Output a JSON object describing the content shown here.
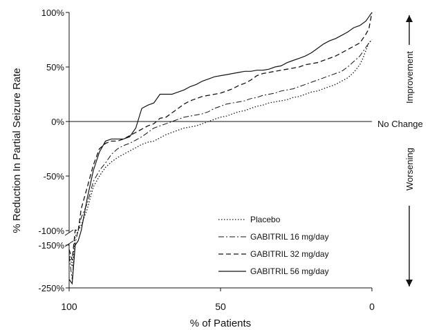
{
  "chart_data": {
    "type": "line",
    "title": "",
    "xlabel": "% of Patients",
    "ylabel": "% Reduction In Partial Seizure Rate",
    "xlim": [
      100,
      0
    ],
    "x_ticks": [
      "100",
      "50",
      "0"
    ],
    "y_ticks_upper": [
      "100%",
      "50%",
      "0%",
      "-50%",
      "-100%"
    ],
    "y_ticks_lower": [
      "-150%",
      "-250%"
    ],
    "y_axis_break": true,
    "reference_line": {
      "y": 0,
      "label": "No Change"
    },
    "side_labels": {
      "improvement": "Improvement",
      "worsening": "Worsening"
    },
    "legend_position": "bottom-right",
    "series": [
      {
        "name": "Placebo",
        "style": "dotted",
        "points": [
          [
            100,
            -170
          ],
          [
            99,
            -200
          ],
          [
            98,
            -130
          ],
          [
            97,
            -100
          ],
          [
            96,
            -95
          ],
          [
            94,
            -80
          ],
          [
            92,
            -60
          ],
          [
            90,
            -50
          ],
          [
            88,
            -42
          ],
          [
            86,
            -37
          ],
          [
            84,
            -33
          ],
          [
            82,
            -30
          ],
          [
            80,
            -27
          ],
          [
            78,
            -24
          ],
          [
            76,
            -21
          ],
          [
            74,
            -19
          ],
          [
            72,
            -18
          ],
          [
            70,
            -15
          ],
          [
            68,
            -12
          ],
          [
            66,
            -10
          ],
          [
            64,
            -8
          ],
          [
            62,
            -6
          ],
          [
            60,
            -5
          ],
          [
            58,
            -4
          ],
          [
            56,
            -2
          ],
          [
            54,
            0
          ],
          [
            52,
            2
          ],
          [
            50,
            4
          ],
          [
            48,
            5
          ],
          [
            46,
            7
          ],
          [
            44,
            9
          ],
          [
            42,
            10
          ],
          [
            40,
            12
          ],
          [
            38,
            14
          ],
          [
            36,
            15
          ],
          [
            34,
            17
          ],
          [
            32,
            18
          ],
          [
            30,
            19
          ],
          [
            28,
            20
          ],
          [
            26,
            22
          ],
          [
            24,
            23
          ],
          [
            22,
            25
          ],
          [
            20,
            27
          ],
          [
            18,
            28
          ],
          [
            16,
            30
          ],
          [
            14,
            32
          ],
          [
            12,
            34
          ],
          [
            10,
            37
          ],
          [
            8,
            40
          ],
          [
            6,
            45
          ],
          [
            4,
            52
          ],
          [
            3,
            58
          ],
          [
            2,
            65
          ],
          [
            1,
            72
          ],
          [
            0,
            75
          ]
        ]
      },
      {
        "name": "GABITRIL 16 mg/day",
        "style": "dashdot",
        "points": [
          [
            100,
            -175
          ],
          [
            99,
            -230
          ],
          [
            98,
            -145
          ],
          [
            97,
            -100
          ],
          [
            96,
            -88
          ],
          [
            94,
            -75
          ],
          [
            92,
            -55
          ],
          [
            90,
            -45
          ],
          [
            88,
            -38
          ],
          [
            86,
            -30
          ],
          [
            84,
            -25
          ],
          [
            82,
            -22
          ],
          [
            80,
            -20
          ],
          [
            78,
            -17
          ],
          [
            76,
            -14
          ],
          [
            74,
            -10
          ],
          [
            72,
            -6
          ],
          [
            70,
            -4
          ],
          [
            68,
            -2
          ],
          [
            66,
            0
          ],
          [
            64,
            2
          ],
          [
            62,
            4
          ],
          [
            60,
            5
          ],
          [
            58,
            6
          ],
          [
            56,
            7
          ],
          [
            54,
            9
          ],
          [
            52,
            12
          ],
          [
            50,
            14
          ],
          [
            48,
            16
          ],
          [
            46,
            17
          ],
          [
            44,
            18
          ],
          [
            42,
            19
          ],
          [
            40,
            21
          ],
          [
            38,
            22
          ],
          [
            36,
            24
          ],
          [
            34,
            25
          ],
          [
            32,
            26
          ],
          [
            30,
            28
          ],
          [
            28,
            29
          ],
          [
            26,
            30
          ],
          [
            24,
            32
          ],
          [
            22,
            34
          ],
          [
            20,
            36
          ],
          [
            18,
            38
          ],
          [
            16,
            40
          ],
          [
            14,
            42
          ],
          [
            12,
            44
          ],
          [
            10,
            46
          ],
          [
            8,
            50
          ],
          [
            6,
            55
          ],
          [
            4,
            60
          ],
          [
            3,
            64
          ],
          [
            2,
            68
          ],
          [
            1,
            72
          ],
          [
            0,
            75
          ]
        ]
      },
      {
        "name": "GABITRIL 32 mg/day",
        "style": "dashed",
        "points": [
          [
            100,
            -160
          ],
          [
            99,
            -185
          ],
          [
            98,
            -115
          ],
          [
            97,
            -100
          ],
          [
            96,
            -80
          ],
          [
            94,
            -60
          ],
          [
            92,
            -40
          ],
          [
            90,
            -25
          ],
          [
            88,
            -20
          ],
          [
            86,
            -18
          ],
          [
            84,
            -18
          ],
          [
            82,
            -16
          ],
          [
            80,
            -13
          ],
          [
            78,
            -10
          ],
          [
            76,
            -7
          ],
          [
            74,
            -4
          ],
          [
            72,
            -2
          ],
          [
            70,
            3
          ],
          [
            68,
            4
          ],
          [
            66,
            8
          ],
          [
            64,
            12
          ],
          [
            62,
            16
          ],
          [
            60,
            19
          ],
          [
            58,
            21
          ],
          [
            56,
            23
          ],
          [
            54,
            24
          ],
          [
            52,
            25
          ],
          [
            50,
            26
          ],
          [
            48,
            28
          ],
          [
            46,
            30
          ],
          [
            44,
            33
          ],
          [
            42,
            35
          ],
          [
            40,
            38
          ],
          [
            38,
            42
          ],
          [
            36,
            44
          ],
          [
            34,
            45
          ],
          [
            32,
            46
          ],
          [
            30,
            47
          ],
          [
            28,
            48
          ],
          [
            26,
            49
          ],
          [
            24,
            50
          ],
          [
            22,
            52
          ],
          [
            20,
            53
          ],
          [
            18,
            54
          ],
          [
            16,
            56
          ],
          [
            14,
            58
          ],
          [
            12,
            60
          ],
          [
            10,
            63
          ],
          [
            8,
            66
          ],
          [
            6,
            69
          ],
          [
            4,
            72
          ],
          [
            3,
            76
          ],
          [
            2,
            80
          ],
          [
            1,
            85
          ],
          [
            0,
            100
          ]
        ]
      },
      {
        "name": "GABITRIL 56 mg/day",
        "style": "solid",
        "points": [
          [
            100,
            -230
          ],
          [
            99,
            -240
          ],
          [
            98,
            -150
          ],
          [
            97,
            -140
          ],
          [
            96,
            -100
          ],
          [
            94,
            -70
          ],
          [
            92,
            -45
          ],
          [
            90,
            -28
          ],
          [
            88,
            -18
          ],
          [
            86,
            -16
          ],
          [
            84,
            -16
          ],
          [
            82,
            -16
          ],
          [
            80,
            -14
          ],
          [
            78,
            -6
          ],
          [
            76,
            12
          ],
          [
            74,
            15
          ],
          [
            72,
            17
          ],
          [
            70,
            25
          ],
          [
            68,
            25
          ],
          [
            66,
            25
          ],
          [
            64,
            27
          ],
          [
            62,
            29
          ],
          [
            60,
            32
          ],
          [
            58,
            34
          ],
          [
            56,
            37
          ],
          [
            54,
            39
          ],
          [
            52,
            41
          ],
          [
            50,
            42
          ],
          [
            48,
            43
          ],
          [
            46,
            44
          ],
          [
            44,
            45
          ],
          [
            42,
            46
          ],
          [
            40,
            46
          ],
          [
            38,
            47
          ],
          [
            36,
            47
          ],
          [
            34,
            48
          ],
          [
            32,
            50
          ],
          [
            30,
            51
          ],
          [
            28,
            54
          ],
          [
            26,
            56
          ],
          [
            24,
            58
          ],
          [
            22,
            60
          ],
          [
            20,
            63
          ],
          [
            18,
            67
          ],
          [
            16,
            71
          ],
          [
            14,
            74
          ],
          [
            12,
            76
          ],
          [
            10,
            79
          ],
          [
            8,
            82
          ],
          [
            6,
            86
          ],
          [
            4,
            88
          ],
          [
            2,
            92
          ],
          [
            1,
            96
          ],
          [
            0,
            100
          ]
        ]
      }
    ]
  }
}
